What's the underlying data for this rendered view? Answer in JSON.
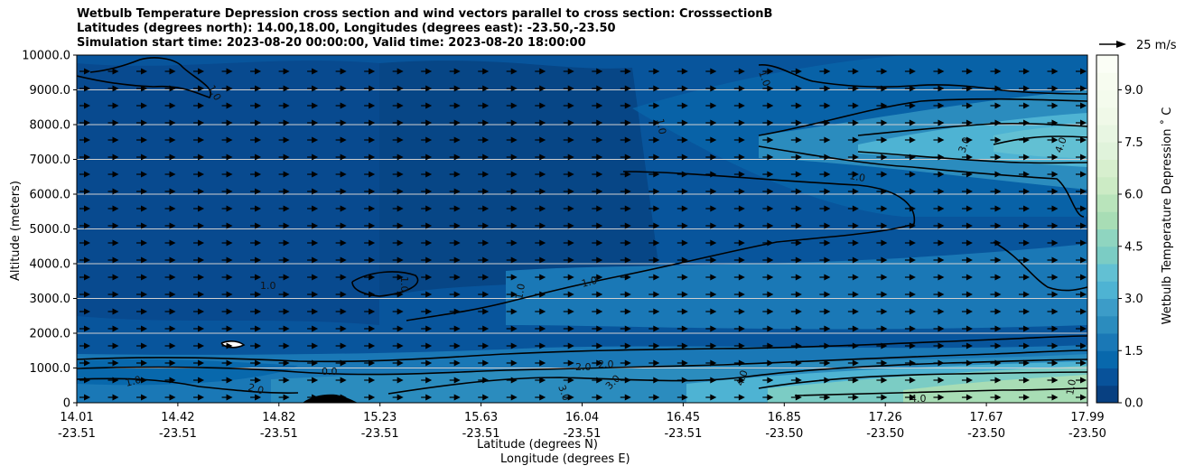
{
  "title_lines": [
    "Wetbulb Temperature Depression cross section and wind vectors parallel to cross section: CrosssectionB",
    "Latitudes (degrees north): 14.00,18.00, Longitudes (degrees east): -23.50,-23.50",
    "Simulation start time: 2023-08-20 00:00:00, Valid time: 2023-08-20 18:00:00"
  ],
  "chart_data": {
    "type": "contour",
    "ylabel": "Altitude (meters)",
    "xlabel_lat": "Latitude (degrees N)",
    "xlabel_lon": "Longitude (degrees E)",
    "ylim": [
      0,
      10000
    ],
    "yticks": [
      "0",
      "1000.0",
      "2000.0",
      "3000.0",
      "4000.0",
      "5000.0",
      "6000.0",
      "7000.0",
      "8000.0",
      "9000.0",
      "10000.0"
    ],
    "xticks": [
      {
        "lat": "14.01",
        "lon": "-23.51"
      },
      {
        "lat": "14.42",
        "lon": "-23.51"
      },
      {
        "lat": "14.82",
        "lon": "-23.51"
      },
      {
        "lat": "15.23",
        "lon": "-23.51"
      },
      {
        "lat": "15.63",
        "lon": "-23.51"
      },
      {
        "lat": "16.04",
        "lon": "-23.51"
      },
      {
        "lat": "16.45",
        "lon": "-23.51"
      },
      {
        "lat": "16.85",
        "lon": "-23.50"
      },
      {
        "lat": "17.26",
        "lon": "-23.50"
      },
      {
        "lat": "17.67",
        "lon": "-23.50"
      },
      {
        "lat": "17.99",
        "lon": "-23.50"
      }
    ],
    "colorbar": {
      "label": "Wetbulb Temperature Depression ˚ C",
      "ticks": [
        "0.0",
        "1.5",
        "3.0",
        "4.5",
        "6.0",
        "7.5",
        "9.0"
      ],
      "range": [
        0,
        10
      ],
      "levels": 20,
      "colors": [
        "#084081",
        "#08529a",
        "#0868ac",
        "#1a78b6",
        "#2b8cbe",
        "#3c9cc8",
        "#4eb3d3",
        "#62c0d3",
        "#7bccc4",
        "#8fd5c0",
        "#a8ddb5",
        "#b9e4bb",
        "#ccebc5",
        "#d7efce",
        "#e0f3db",
        "#e8f6e2",
        "#f0f9e8",
        "#f4fbed",
        "#f7fcf0",
        "#fbfef6"
      ]
    },
    "quiver_key": {
      "label": "25 m/s"
    },
    "contour_labels": [
      "1.0",
      "2.0",
      "3.0",
      "4.0",
      "0.0"
    ],
    "wind_direction": "parallel, toward increasing latitude"
  }
}
